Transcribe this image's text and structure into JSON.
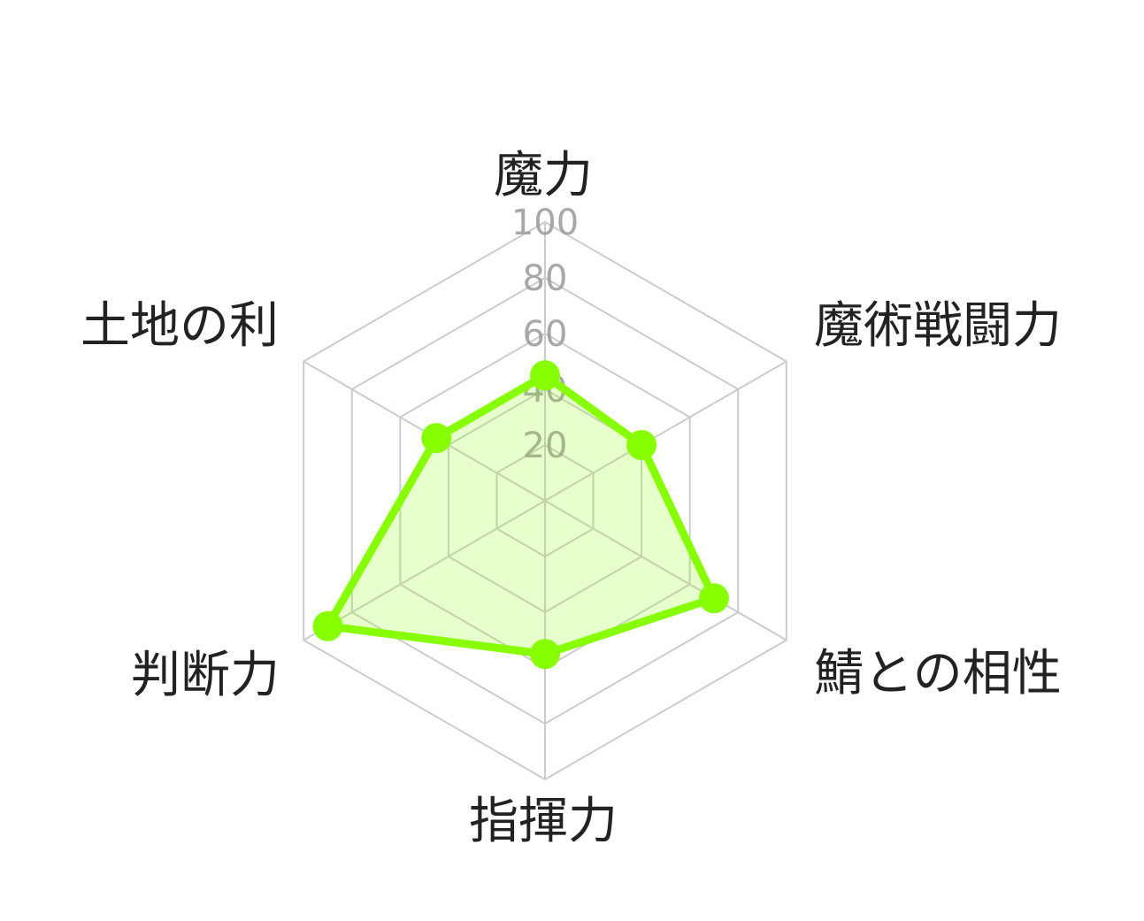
{
  "chart_data": {
    "type": "radar",
    "categories": [
      "魔力",
      "魔術戦闘力",
      "鯖との相性",
      "指揮力",
      "判断力",
      "土地の利"
    ],
    "series": [
      {
        "values": [
          45,
          40,
          70,
          55,
          90,
          45
        ]
      }
    ],
    "rlim": [
      0,
      100
    ],
    "ticks": [
      "20",
      "40",
      "60",
      "80",
      "100"
    ],
    "tick_values": [
      20,
      40,
      60,
      80,
      100
    ],
    "grid": true,
    "colors": {
      "line": "#88ff00",
      "fill": "#88ff0033",
      "grid": "#cccccc",
      "tick": "#999999",
      "label": "#222222"
    }
  }
}
